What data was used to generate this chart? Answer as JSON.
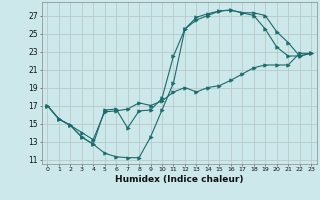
{
  "xlabel": "Humidex (Indice chaleur)",
  "background_color": "#cce8ea",
  "grid_color": "#b8c8c8",
  "line_color": "#1a6b6b",
  "xlim": [
    -0.5,
    23.5
  ],
  "ylim": [
    10.5,
    28.5
  ],
  "xticks": [
    0,
    1,
    2,
    3,
    4,
    5,
    6,
    7,
    8,
    9,
    10,
    11,
    12,
    13,
    14,
    15,
    16,
    17,
    18,
    19,
    20,
    21,
    22,
    23
  ],
  "yticks": [
    11,
    13,
    15,
    17,
    19,
    21,
    23,
    25,
    27
  ],
  "curve1_x": [
    0,
    1,
    2,
    3,
    4,
    5,
    6,
    7,
    8,
    9,
    10,
    11,
    12,
    13,
    14,
    15,
    16,
    17,
    18,
    19,
    20,
    21,
    22,
    23
  ],
  "curve1_y": [
    17,
    15.5,
    14.8,
    14.0,
    13.2,
    16.3,
    16.4,
    16.6,
    17.3,
    17.0,
    17.5,
    18.5,
    19.0,
    18.5,
    19.0,
    19.2,
    19.8,
    20.5,
    21.2,
    21.5,
    21.5,
    21.5,
    22.8,
    22.8
  ],
  "curve2_x": [
    0,
    1,
    2,
    3,
    4,
    5,
    6,
    7,
    8,
    9,
    10,
    11,
    12,
    13,
    14,
    15,
    16,
    17,
    18,
    19,
    20,
    21,
    22,
    23
  ],
  "curve2_y": [
    17,
    15.5,
    14.8,
    13.5,
    12.7,
    11.7,
    11.3,
    11.2,
    11.2,
    13.5,
    16.5,
    19.5,
    25.5,
    26.8,
    27.2,
    27.5,
    27.6,
    27.3,
    27.3,
    27.0,
    25.2,
    24.0,
    22.5,
    22.8
  ],
  "curve3_x": [
    0,
    1,
    2,
    3,
    4,
    5,
    6,
    7,
    8,
    9,
    10,
    11,
    12,
    13,
    14,
    15,
    16,
    17,
    18,
    19,
    20,
    21,
    22,
    23
  ],
  "curve3_y": [
    17,
    15.5,
    14.8,
    13.5,
    12.7,
    16.5,
    16.6,
    14.5,
    16.4,
    16.5,
    17.8,
    22.5,
    25.5,
    26.5,
    27.0,
    27.5,
    27.6,
    27.3,
    27.0,
    25.5,
    23.5,
    22.5,
    22.5,
    22.8
  ]
}
